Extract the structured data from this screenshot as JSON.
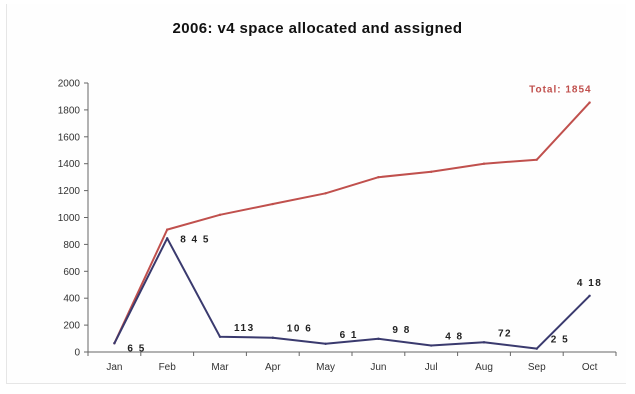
{
  "chart_data": {
    "type": "line",
    "title": "2006: v4 space allocated and assigned",
    "categories": [
      "Jan",
      "Feb",
      "Mar",
      "Apr",
      "May",
      "Jun",
      "Jul",
      "Aug",
      "Sep",
      "Oct"
    ],
    "ylim": [
      0,
      2000
    ],
    "yticks": [
      "0",
      "200",
      "400",
      "600",
      "800",
      "1000",
      "1200",
      "1400",
      "1600",
      "1800",
      "2000"
    ],
    "grid": false,
    "series": [
      {
        "color": "#c0504d",
        "values": [
          65,
          910,
          1020,
          1100,
          1180,
          1300,
          1340,
          1400,
          1430,
          1854
        ],
        "annotation": "Total: 1854"
      },
      {
        "color": "#3a3a6e",
        "values": [
          65,
          845,
          113,
          106,
          61,
          98,
          48,
          72,
          25,
          418
        ],
        "labels": [
          "6 5",
          "8 4 5",
          "113",
          "10 6",
          "6 1",
          "9 8",
          "4 8",
          "72",
          "2 5",
          "4 18"
        ]
      }
    ]
  }
}
